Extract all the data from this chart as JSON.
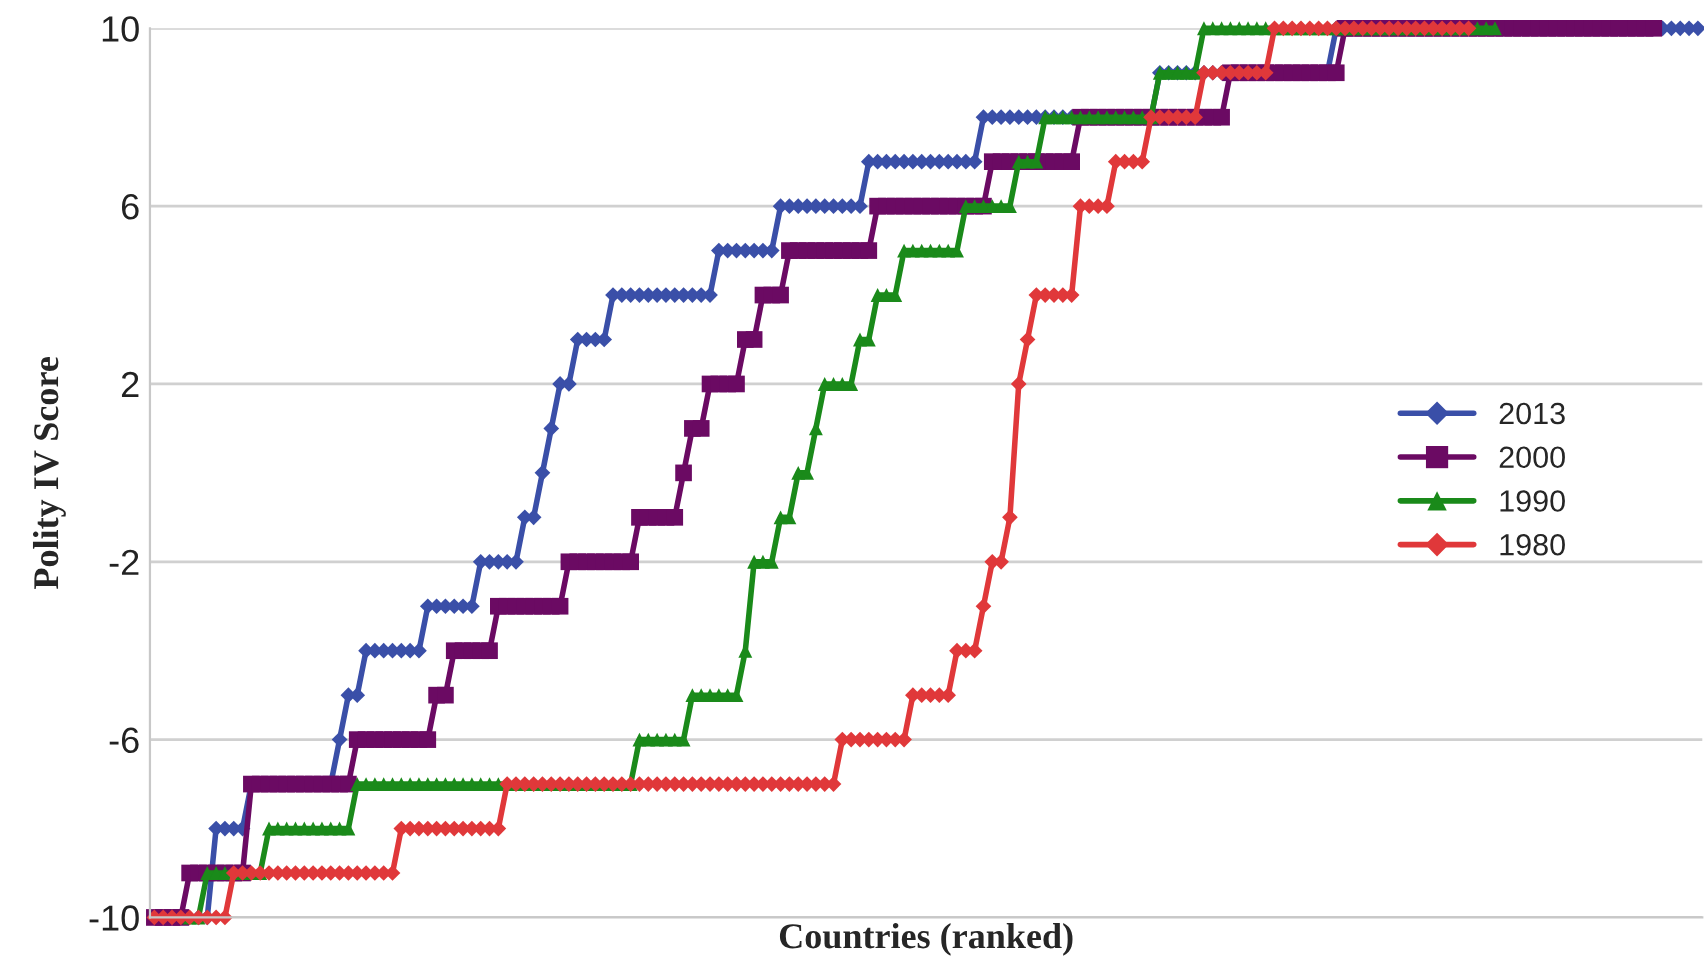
{
  "chart_data": {
    "type": "line",
    "xlabel": "Countries (ranked)",
    "ylabel": "Polity IV Score",
    "categories": [
      null,
      null,
      null,
      null,
      null,
      null,
      null,
      null,
      null,
      null,
      null,
      null,
      null,
      null,
      null,
      null,
      null,
      null,
      null,
      null,
      null,
      null,
      null,
      null,
      null,
      null,
      null,
      null,
      null,
      null,
      null,
      null,
      null,
      null,
      null,
      null,
      null,
      null,
      null,
      null,
      null,
      null,
      null,
      null,
      null,
      null,
      null,
      null,
      null,
      null,
      null,
      null,
      null,
      null,
      null,
      null,
      null,
      null,
      null,
      null,
      null,
      null,
      null,
      null,
      null,
      null,
      null,
      null,
      null,
      null,
      null,
      null,
      null,
      null,
      null,
      null,
      null,
      null,
      null,
      null,
      null,
      null,
      null,
      null,
      null,
      null,
      null,
      null,
      null,
      null,
      null,
      null,
      null,
      null,
      null,
      null,
      null,
      null,
      null,
      null,
      null,
      null,
      null,
      null,
      null,
      null,
      null,
      null,
      null,
      null,
      null,
      null,
      null,
      null,
      null,
      null,
      null,
      null,
      null,
      null,
      null,
      null,
      null,
      null,
      null,
      null,
      null,
      null,
      null,
      null,
      null,
      null,
      null,
      null,
      null,
      null,
      null,
      null,
      null,
      null,
      null,
      null,
      null,
      null,
      null,
      null,
      null,
      null,
      null,
      null,
      null,
      null,
      null,
      null,
      null,
      null,
      null,
      null,
      null,
      null,
      null,
      null,
      null,
      null,
      null,
      null,
      null,
      null,
      null,
      null,
      null,
      null,
      null,
      null,
      null,
      null
    ],
    "series": [
      {
        "name": "2013",
        "color": "#3a4fa8",
        "marker": "diamond",
        "values": [
          null,
          null,
          null,
          null,
          null,
          -10,
          -10,
          -8,
          -8,
          -8,
          -8,
          -7,
          -7,
          -7,
          -7,
          -7,
          -7,
          -7,
          -7,
          -7,
          -7,
          -6,
          -5,
          -5,
          -4,
          -4,
          -4,
          -4,
          -4,
          -4,
          -4,
          -3,
          -3,
          -3,
          -3,
          -3,
          -3,
          -2,
          -2,
          -2,
          -2,
          -2,
          -1,
          -1,
          0,
          1,
          2,
          2,
          3,
          3,
          3,
          3,
          4,
          4,
          4,
          4,
          4,
          4,
          4,
          4,
          4,
          4,
          4,
          4,
          5,
          5,
          5,
          5,
          5,
          5,
          5,
          6,
          6,
          6,
          6,
          6,
          6,
          6,
          6,
          6,
          6,
          7,
          7,
          7,
          7,
          7,
          7,
          7,
          7,
          7,
          7,
          7,
          7,
          7,
          8,
          8,
          8,
          8,
          8,
          8,
          8,
          8,
          8,
          8,
          8,
          8,
          8,
          8,
          8,
          8,
          8,
          8,
          8,
          8,
          9,
          9,
          9,
          9,
          9,
          9,
          9,
          9,
          9,
          9,
          9,
          9,
          9,
          9,
          9,
          9,
          9,
          9,
          9,
          9,
          10,
          10,
          10,
          10,
          10,
          10,
          10,
          10,
          10,
          10,
          10,
          10,
          10,
          10,
          10,
          10,
          10,
          10,
          10,
          10,
          10,
          10,
          10,
          10,
          10,
          10,
          10,
          10,
          10,
          10,
          10,
          10,
          10,
          10,
          10,
          10,
          10,
          10,
          10,
          10,
          10,
          10
        ]
      },
      {
        "name": "2000",
        "color": "#6b0a63",
        "marker": "square",
        "values": [
          -10,
          -10,
          -10,
          -10,
          -9,
          -9,
          -9,
          -9,
          -9,
          -9,
          -9,
          -7,
          -7,
          -7,
          -7,
          -7,
          -7,
          -7,
          -7,
          -7,
          -7,
          -7,
          -7,
          -6,
          -6,
          -6,
          -6,
          -6,
          -6,
          -6,
          -6,
          -6,
          -5,
          -5,
          -4,
          -4,
          -4,
          -4,
          -4,
          -3,
          -3,
          -3,
          -3,
          -3,
          -3,
          -3,
          -3,
          -2,
          -2,
          -2,
          -2,
          -2,
          -2,
          -2,
          -2,
          -1,
          -1,
          -1,
          -1,
          -1,
          0,
          1,
          1,
          2,
          2,
          2,
          2,
          3,
          3,
          4,
          4,
          4,
          5,
          5,
          5,
          5,
          5,
          5,
          5,
          5,
          5,
          5,
          6,
          6,
          6,
          6,
          6,
          6,
          6,
          6,
          6,
          6,
          6,
          6,
          6,
          7,
          7,
          7,
          7,
          7,
          7,
          7,
          7,
          7,
          7,
          8,
          8,
          8,
          8,
          8,
          8,
          8,
          8,
          8,
          8,
          8,
          8,
          8,
          8,
          8,
          8,
          8,
          9,
          9,
          9,
          9,
          9,
          9,
          9,
          9,
          9,
          9,
          9,
          9,
          9,
          10,
          10,
          10,
          10,
          10,
          10,
          10,
          10,
          10,
          10,
          10,
          10,
          10,
          10,
          10,
          10,
          10,
          10,
          10,
          10,
          10,
          10,
          10,
          10,
          10,
          10,
          10,
          10,
          10,
          10,
          10,
          10,
          10,
          10,
          10,
          10,
          null,
          null,
          null,
          null,
          null
        ]
      },
      {
        "name": "1990",
        "color": "#1a8a1a",
        "marker": "triangle",
        "values": [
          null,
          null,
          null,
          null,
          -10,
          -10,
          -9,
          -9,
          -9,
          -9,
          -9,
          -9,
          -9,
          -8,
          -8,
          -8,
          -8,
          -8,
          -8,
          -8,
          -8,
          -8,
          -8,
          -7,
          -7,
          -7,
          -7,
          -7,
          -7,
          -7,
          -7,
          -7,
          -7,
          -7,
          -7,
          -7,
          -7,
          -7,
          -7,
          -7,
          -7,
          -7,
          -7,
          -7,
          -7,
          -7,
          -7,
          -7,
          -7,
          -7,
          -7,
          -7,
          -7,
          -7,
          -7,
          -6,
          -6,
          -6,
          -6,
          -6,
          -6,
          -5,
          -5,
          -5,
          -5,
          -5,
          -5,
          -4,
          -2,
          -2,
          -2,
          -1,
          -1,
          0,
          0,
          1,
          2,
          2,
          2,
          2,
          3,
          3,
          4,
          4,
          4,
          5,
          5,
          5,
          5,
          5,
          5,
          5,
          6,
          6,
          6,
          6,
          6,
          6,
          7,
          7,
          7,
          8,
          8,
          8,
          8,
          8,
          8,
          8,
          8,
          8,
          8,
          8,
          8,
          8,
          9,
          9,
          9,
          9,
          9,
          10,
          10,
          10,
          10,
          10,
          10,
          10,
          10,
          10,
          10,
          10,
          10,
          10,
          10,
          10,
          10,
          10,
          10,
          10,
          10,
          10,
          10,
          10,
          10,
          10,
          10,
          10,
          10,
          10,
          10,
          10,
          10,
          10,
          10,
          null,
          null,
          null,
          null,
          null,
          null,
          null,
          null,
          null,
          null,
          null,
          null,
          null,
          null,
          null,
          null,
          null,
          null,
          null,
          null,
          null,
          null,
          null
        ]
      },
      {
        "name": "1980",
        "color": "#e0383a",
        "marker": "diamond",
        "values": [
          -10,
          -10,
          -10,
          -10,
          -10,
          -10,
          -10,
          -10,
          -10,
          -9,
          -9,
          -9,
          -9,
          -9,
          -9,
          -9,
          -9,
          -9,
          -9,
          -9,
          -9,
          -9,
          -9,
          -9,
          -9,
          -9,
          -9,
          -9,
          -8,
          -8,
          -8,
          -8,
          -8,
          -8,
          -8,
          -8,
          -8,
          -8,
          -8,
          -8,
          -7,
          -7,
          -7,
          -7,
          -7,
          -7,
          -7,
          -7,
          -7,
          -7,
          -7,
          -7,
          -7,
          -7,
          -7,
          -7,
          -7,
          -7,
          -7,
          -7,
          -7,
          -7,
          -7,
          -7,
          -7,
          -7,
          -7,
          -7,
          -7,
          -7,
          -7,
          -7,
          -7,
          -7,
          -7,
          -7,
          -7,
          -7,
          -6,
          -6,
          -6,
          -6,
          -6,
          -6,
          -6,
          -6,
          -5,
          -5,
          -5,
          -5,
          -5,
          -4,
          -4,
          -4,
          -3,
          -2,
          -2,
          -1,
          2,
          3,
          4,
          4,
          4,
          4,
          4,
          6,
          6,
          6,
          6,
          7,
          7,
          7,
          7,
          8,
          8,
          8,
          8,
          8,
          8,
          9,
          9,
          9,
          9,
          9,
          9,
          9,
          9,
          10,
          10,
          10,
          10,
          10,
          10,
          10,
          10,
          10,
          10,
          10,
          10,
          10,
          10,
          10,
          10,
          10,
          10,
          10,
          10,
          10,
          10,
          10,
          null,
          null,
          null,
          null,
          null,
          null,
          null,
          null,
          null,
          null,
          null,
          null,
          null,
          null,
          null,
          null,
          null,
          null,
          null,
          null,
          null,
          null,
          null,
          null,
          null,
          null
        ]
      }
    ],
    "ylim": [
      -10,
      10
    ],
    "yticks": [
      -10,
      -6,
      -2,
      2,
      6,
      10
    ],
    "grid": "y",
    "legend": "right",
    "tick_labels": "y"
  }
}
